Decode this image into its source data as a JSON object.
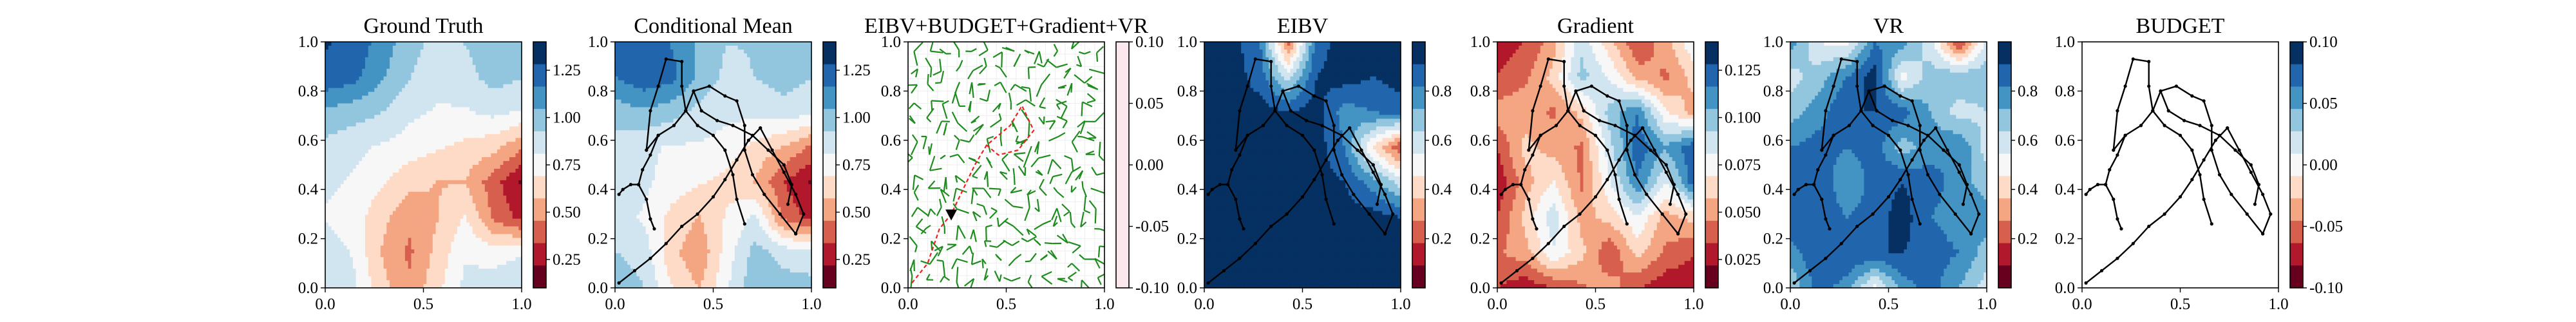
{
  "chart_data": [
    {
      "type": "heatmap",
      "title": "Ground Truth",
      "xlim": [
        0,
        1
      ],
      "ylim": [
        0,
        1
      ],
      "xticks": [
        "0.0",
        "0.5",
        "1.0"
      ],
      "yticks": [
        "0.0",
        "0.2",
        "0.4",
        "0.6",
        "0.8",
        "1.0"
      ],
      "colorbar": {
        "cmap": "RdBu",
        "ticks": [
          "0.25",
          "0.50",
          "0.75",
          "1.00",
          "1.25"
        ],
        "tick_values": [
          0.25,
          0.5,
          0.75,
          1.0,
          1.25
        ],
        "vmin": 0.1,
        "vmax": 1.4
      },
      "field": [
        [
          1.35,
          1.3,
          1.15,
          1.0,
          0.9,
          0.95,
          1.05,
          1.0
        ],
        [
          1.3,
          1.25,
          1.1,
          0.95,
          0.85,
          0.9,
          1.0,
          0.95
        ],
        [
          1.05,
          1.0,
          0.95,
          0.85,
          0.8,
          0.8,
          0.85,
          0.8
        ],
        [
          0.9,
          0.85,
          0.8,
          0.75,
          0.7,
          0.65,
          0.6,
          0.45
        ],
        [
          0.85,
          0.8,
          0.7,
          0.6,
          0.55,
          0.55,
          0.35,
          0.15
        ],
        [
          0.8,
          0.75,
          0.6,
          0.45,
          0.55,
          0.7,
          0.4,
          0.25
        ],
        [
          0.9,
          0.8,
          0.55,
          0.4,
          0.6,
          0.8,
          0.75,
          0.8
        ],
        [
          0.95,
          0.85,
          0.6,
          0.45,
          0.65,
          0.85,
          0.9,
          0.95
        ]
      ]
    },
    {
      "type": "heatmap",
      "title": "Conditional Mean",
      "xlim": [
        0,
        1
      ],
      "ylim": [
        0,
        1
      ],
      "xticks": [
        "0.0",
        "0.5",
        "1.0"
      ],
      "yticks": [
        "0.0",
        "0.2",
        "0.4",
        "0.6",
        "0.8",
        "1.0"
      ],
      "colorbar": {
        "cmap": "RdBu",
        "ticks": [
          "0.25",
          "0.50",
          "0.75",
          "1.00",
          "1.25"
        ],
        "tick_values": [
          0.25,
          0.5,
          0.75,
          1.0,
          1.25
        ],
        "vmin": 0.1,
        "vmax": 1.4
      },
      "field": [
        [
          1.3,
          1.3,
          1.2,
          1.05,
          0.95,
          0.95,
          1.0,
          0.95
        ],
        [
          1.2,
          1.3,
          1.25,
          1.05,
          0.9,
          0.95,
          1.0,
          0.95
        ],
        [
          1.0,
          1.05,
          1.0,
          0.9,
          0.85,
          0.85,
          0.9,
          0.85
        ],
        [
          0.9,
          0.85,
          0.8,
          0.8,
          0.75,
          0.65,
          0.55,
          0.4
        ],
        [
          0.9,
          0.85,
          0.75,
          0.7,
          0.65,
          0.55,
          0.3,
          0.15
        ],
        [
          0.85,
          0.8,
          0.65,
          0.55,
          0.7,
          0.85,
          0.4,
          0.25
        ],
        [
          0.95,
          0.9,
          0.6,
          0.45,
          0.75,
          1.0,
          0.9,
          0.85
        ],
        [
          1.0,
          0.95,
          0.7,
          0.55,
          0.8,
          1.05,
          1.0,
          1.0
        ]
      ]
    },
    {
      "type": "vector-field",
      "title": "EIBV+BUDGET+Gradient+VR",
      "xlim": [
        0,
        1
      ],
      "ylim": [
        0,
        1
      ],
      "xticks": [
        "0.0",
        "0.5",
        "1.0"
      ],
      "yticks": [
        "0.0",
        "0.2",
        "0.4",
        "0.6",
        "0.8",
        "1.0"
      ],
      "colorbar": {
        "cmap": "RdBu",
        "ticks": [
          "-0.10",
          "-0.05",
          "0.00",
          "0.05",
          "0.10"
        ],
        "tick_values": [
          -0.1,
          -0.05,
          0.0,
          0.05,
          0.1
        ],
        "vmin": -0.1,
        "vmax": 0.1,
        "fill": "#fae8ec"
      },
      "path": {
        "color": "#ee2222",
        "points": [
          [
            0.02,
            0.02
          ],
          [
            0.1,
            0.1
          ],
          [
            0.16,
            0.24
          ],
          [
            0.22,
            0.3
          ],
          [
            0.34,
            0.5
          ],
          [
            0.4,
            0.58
          ],
          [
            0.46,
            0.62
          ],
          [
            0.52,
            0.66
          ],
          [
            0.58,
            0.74
          ],
          [
            0.64,
            0.64
          ],
          [
            0.56,
            0.56
          ],
          [
            0.46,
            0.54
          ],
          [
            0.4,
            0.58
          ]
        ]
      },
      "marker": [
        0.22,
        0.3
      ]
    },
    {
      "type": "heatmap",
      "title": "EIBV",
      "xlim": [
        0,
        1
      ],
      "ylim": [
        0,
        1
      ],
      "xticks": [
        "0.0",
        "0.5",
        "1.0"
      ],
      "yticks": [
        "0.0",
        "0.2",
        "0.4",
        "0.6",
        "0.8",
        "1.0"
      ],
      "colorbar": {
        "cmap": "RdBu",
        "ticks": [
          "0.2",
          "0.4",
          "0.6",
          "0.8"
        ],
        "tick_values": [
          0.2,
          0.4,
          0.6,
          0.8
        ],
        "vmin": 0.0,
        "vmax": 1.0
      },
      "field": [
        [
          1.0,
          1.0,
          0.85,
          0.2,
          0.9,
          1.0,
          1.0,
          1.0
        ],
        [
          1.0,
          1.0,
          0.9,
          0.6,
          0.95,
          1.0,
          0.95,
          1.0
        ],
        [
          1.0,
          1.0,
          1.0,
          0.95,
          1.0,
          0.8,
          0.85,
          0.9
        ],
        [
          1.0,
          1.0,
          1.0,
          1.0,
          1.0,
          0.85,
          0.45,
          0.15
        ],
        [
          1.0,
          1.0,
          1.0,
          1.0,
          1.0,
          0.95,
          0.8,
          0.6
        ],
        [
          1.0,
          1.0,
          1.0,
          1.0,
          1.0,
          1.0,
          1.0,
          0.95
        ],
        [
          1.0,
          1.0,
          1.0,
          1.0,
          1.0,
          1.0,
          1.0,
          1.0
        ],
        [
          1.0,
          1.0,
          1.0,
          1.0,
          1.0,
          1.0,
          1.0,
          1.0
        ]
      ]
    },
    {
      "type": "heatmap",
      "title": "Gradient",
      "xlim": [
        0,
        1
      ],
      "ylim": [
        0,
        1
      ],
      "xticks": [
        "0.0",
        "0.5",
        "1.0"
      ],
      "yticks": [
        "0.0",
        "0.2",
        "0.4",
        "0.6",
        "0.8",
        "1.0"
      ],
      "colorbar": {
        "cmap": "RdBu",
        "ticks": [
          "0.025",
          "0.050",
          "0.075",
          "0.100",
          "0.125"
        ],
        "tick_values": [
          0.025,
          0.05,
          0.075,
          0.1,
          0.125
        ],
        "vmin": 0.01,
        "vmax": 0.14
      },
      "field": [
        [
          0.02,
          0.03,
          0.05,
          0.09,
          0.06,
          0.03,
          0.05,
          0.08
        ],
        [
          0.03,
          0.04,
          0.06,
          0.1,
          0.08,
          0.05,
          0.04,
          0.06
        ],
        [
          0.05,
          0.05,
          0.04,
          0.06,
          0.1,
          0.12,
          0.07,
          0.05
        ],
        [
          0.03,
          0.06,
          0.05,
          0.04,
          0.09,
          0.13,
          0.11,
          0.13
        ],
        [
          0.02,
          0.05,
          0.07,
          0.04,
          0.08,
          0.12,
          0.08,
          0.13
        ],
        [
          0.03,
          0.06,
          0.09,
          0.05,
          0.06,
          0.08,
          0.05,
          0.06
        ],
        [
          0.04,
          0.05,
          0.08,
          0.06,
          0.03,
          0.06,
          0.04,
          0.03
        ],
        [
          0.03,
          0.02,
          0.03,
          0.04,
          0.05,
          0.03,
          0.02,
          0.02
        ]
      ]
    },
    {
      "type": "heatmap",
      "title": "VR",
      "xlim": [
        0,
        1
      ],
      "ylim": [
        0,
        1
      ],
      "xticks": [
        "0.0",
        "0.5",
        "1.0"
      ],
      "yticks": [
        "0.0",
        "0.2",
        "0.4",
        "0.6",
        "0.8",
        "1.0"
      ],
      "colorbar": {
        "cmap": "RdBu",
        "ticks": [
          "0.2",
          "0.4",
          "0.6",
          "0.8"
        ],
        "tick_values": [
          0.2,
          0.4,
          0.6,
          0.8
        ],
        "vmin": 0.0,
        "vmax": 1.0
      },
      "field": [
        [
          0.8,
          0.55,
          0.5,
          0.85,
          0.8,
          0.6,
          0.1,
          0.6
        ],
        [
          0.6,
          0.7,
          0.85,
          1.0,
          0.5,
          0.7,
          0.75,
          0.7
        ],
        [
          0.7,
          0.8,
          0.95,
          0.95,
          0.9,
          0.75,
          0.6,
          0.65
        ],
        [
          0.85,
          0.9,
          0.85,
          0.9,
          0.7,
          0.8,
          0.85,
          0.6
        ],
        [
          0.9,
          0.95,
          0.75,
          0.9,
          0.95,
          0.9,
          0.8,
          0.7
        ],
        [
          0.95,
          0.95,
          0.85,
          0.9,
          1.0,
          0.85,
          0.8,
          0.8
        ],
        [
          0.8,
          0.95,
          0.95,
          0.95,
          0.95,
          0.9,
          0.85,
          0.7
        ],
        [
          0.65,
          0.9,
          0.8,
          0.5,
          0.8,
          0.9,
          0.75,
          0.6
        ]
      ]
    },
    {
      "type": "scatter",
      "title": "BUDGET",
      "xlim": [
        0,
        1
      ],
      "ylim": [
        0,
        1
      ],
      "xticks": [
        "0.0",
        "0.5",
        "1.0"
      ],
      "yticks": [
        "0.0",
        "0.2",
        "0.4",
        "0.6",
        "0.8",
        "1.0"
      ],
      "colorbar": {
        "cmap": "RdBu",
        "ticks": [
          "-0.10",
          "-0.05",
          "0.00",
          "0.05",
          "0.10"
        ],
        "tick_values": [
          -0.1,
          -0.05,
          0.0,
          0.05,
          0.1
        ],
        "vmin": -0.1,
        "vmax": 0.1
      }
    }
  ],
  "trajectory": [
    [
      [
        0.02,
        0.02
      ],
      [
        0.1,
        0.07
      ],
      [
        0.18,
        0.12
      ],
      [
        0.26,
        0.18
      ],
      [
        0.34,
        0.25
      ],
      [
        0.42,
        0.3
      ],
      [
        0.5,
        0.37
      ],
      [
        0.56,
        0.44
      ],
      [
        0.62,
        0.52
      ],
      [
        0.68,
        0.6
      ],
      [
        0.74,
        0.65
      ]
    ],
    [
      [
        0.74,
        0.65
      ],
      [
        0.8,
        0.56
      ],
      [
        0.86,
        0.47
      ],
      [
        0.92,
        0.38
      ],
      [
        0.96,
        0.3
      ],
      [
        0.92,
        0.22
      ]
    ],
    [
      [
        0.92,
        0.22
      ],
      [
        0.84,
        0.3
      ],
      [
        0.76,
        0.38
      ],
      [
        0.7,
        0.46
      ],
      [
        0.66,
        0.56
      ],
      [
        0.66,
        0.66
      ],
      [
        0.62,
        0.76
      ],
      [
        0.56,
        0.78
      ],
      [
        0.48,
        0.82
      ],
      [
        0.4,
        0.8
      ],
      [
        0.36,
        0.72
      ],
      [
        0.3,
        0.66
      ],
      [
        0.22,
        0.62
      ],
      [
        0.16,
        0.56
      ],
      [
        0.18,
        0.72
      ],
      [
        0.22,
        0.82
      ],
      [
        0.26,
        0.93
      ],
      [
        0.34,
        0.92
      ],
      [
        0.34,
        0.82
      ],
      [
        0.36,
        0.72
      ]
    ],
    [
      [
        0.36,
        0.72
      ],
      [
        0.42,
        0.66
      ],
      [
        0.5,
        0.62
      ],
      [
        0.56,
        0.56
      ],
      [
        0.6,
        0.46
      ],
      [
        0.62,
        0.36
      ],
      [
        0.66,
        0.26
      ]
    ],
    [
      [
        0.22,
        0.62
      ],
      [
        0.18,
        0.54
      ],
      [
        0.14,
        0.48
      ],
      [
        0.12,
        0.42
      ],
      [
        0.08,
        0.42
      ],
      [
        0.04,
        0.4
      ],
      [
        0.02,
        0.38
      ]
    ],
    [
      [
        0.12,
        0.42
      ],
      [
        0.16,
        0.36
      ],
      [
        0.18,
        0.28
      ],
      [
        0.2,
        0.24
      ]
    ],
    [
      [
        0.4,
        0.8
      ],
      [
        0.44,
        0.72
      ],
      [
        0.52,
        0.68
      ],
      [
        0.6,
        0.66
      ],
      [
        0.7,
        0.62
      ],
      [
        0.78,
        0.56
      ],
      [
        0.86,
        0.5
      ],
      [
        0.9,
        0.42
      ],
      [
        0.88,
        0.34
      ]
    ]
  ]
}
